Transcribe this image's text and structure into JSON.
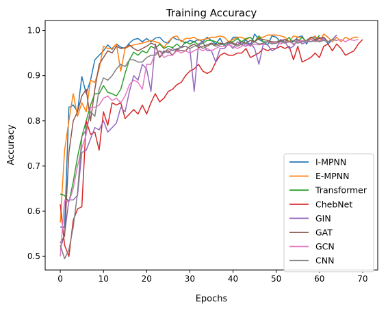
{
  "chart_data": {
    "type": "line",
    "title": "Training Accuracy",
    "xlabel": "Epochs",
    "ylabel": "Accuracy",
    "xlim": [
      -3.5,
      73.5
    ],
    "ylim": [
      0.47,
      1.022
    ],
    "xticks": [
      0,
      10,
      20,
      30,
      40,
      50,
      60,
      70
    ],
    "yticks": [
      0.5,
      0.6,
      0.7,
      0.8,
      0.9,
      1.0
    ],
    "ytick_labels": [
      "0.5",
      "0.6",
      "0.7",
      "0.8",
      "0.9",
      "1.0"
    ],
    "grid": false,
    "legend_position": "lower-right",
    "series": [
      {
        "name": "I-MPNN",
        "color": "#1f77b4",
        "values": [
          0.565,
          0.565,
          0.83,
          0.835,
          0.82,
          0.898,
          0.86,
          0.89,
          0.935,
          0.945,
          0.955,
          0.968,
          0.958,
          0.97,
          0.963,
          0.96,
          0.972,
          0.98,
          0.982,
          0.975,
          0.982,
          0.975,
          0.983,
          0.985,
          0.975,
          0.972,
          0.985,
          0.98,
          0.978,
          0.972,
          0.978,
          0.975,
          0.98,
          0.975,
          0.985,
          0.978,
          0.97,
          0.983,
          0.965,
          0.97,
          0.985,
          0.985,
          0.968,
          0.98,
          0.965,
          0.992,
          0.98,
          0.975,
          0.968,
          0.988,
          0.985,
          0.975,
          0.98,
          0.975,
          0.975,
          0.985,
          0.988,
          0.97,
          0.985,
          0.985,
          0.975,
          0.985,
          0.97,
          0.98,
          0.99
        ]
      },
      {
        "name": "E-MPNN",
        "color": "#ff7f0e",
        "values": [
          0.575,
          0.735,
          0.8,
          0.86,
          0.81,
          0.84,
          0.82,
          0.89,
          0.885,
          0.915,
          0.965,
          0.96,
          0.96,
          0.97,
          0.91,
          0.96,
          0.965,
          0.968,
          0.97,
          0.972,
          0.975,
          0.978,
          0.975,
          0.972,
          0.962,
          0.975,
          0.985,
          0.988,
          0.975,
          0.982,
          0.982,
          0.985,
          0.978,
          0.98,
          0.982,
          0.985,
          0.985,
          0.988,
          0.985,
          0.975,
          0.98,
          0.985,
          0.985,
          0.98,
          0.985,
          0.975,
          0.985,
          0.985,
          0.99,
          0.99,
          0.99,
          0.988,
          0.985,
          0.975,
          0.988,
          0.985,
          0.985,
          0.975,
          0.982,
          0.988,
          0.975,
          0.992,
          0.985,
          0.975,
          0.985,
          0.975,
          0.985,
          0.98,
          0.985,
          0.985
        ]
      },
      {
        "name": "Transformer",
        "color": "#2ca02c",
        "values": [
          0.638,
          0.635,
          0.62,
          0.665,
          0.72,
          0.765,
          0.8,
          0.835,
          0.86,
          0.86,
          0.878,
          0.863,
          0.86,
          0.855,
          0.87,
          0.905,
          0.935,
          0.952,
          0.945,
          0.955,
          0.95,
          0.965,
          0.96,
          0.97,
          0.96,
          0.965,
          0.962,
          0.97,
          0.962,
          0.975,
          0.97,
          0.975,
          0.968,
          0.972,
          0.978,
          0.978,
          0.975,
          0.97,
          0.968,
          0.975,
          0.975,
          0.982,
          0.975,
          0.982,
          0.985,
          0.975,
          0.988,
          0.975,
          0.975,
          0.972,
          0.972,
          0.978,
          0.975,
          0.985,
          0.968,
          0.975,
          0.985,
          0.975,
          0.98,
          0.975,
          0.99
        ]
      },
      {
        "name": "ChebNet",
        "color": "#d62728",
        "values": [
          0.615,
          0.525,
          0.5,
          0.58,
          0.605,
          0.61,
          0.8,
          0.77,
          0.775,
          0.735,
          0.82,
          0.79,
          0.84,
          0.835,
          0.84,
          0.805,
          0.815,
          0.825,
          0.815,
          0.835,
          0.815,
          0.84,
          0.86,
          0.842,
          0.85,
          0.865,
          0.87,
          0.88,
          0.885,
          0.9,
          0.91,
          0.915,
          0.925,
          0.91,
          0.905,
          0.91,
          0.93,
          0.945,
          0.95,
          0.945,
          0.945,
          0.95,
          0.95,
          0.96,
          0.94,
          0.945,
          0.95,
          0.96,
          0.955,
          0.96,
          0.96,
          0.965,
          0.96,
          0.965,
          0.935,
          0.965,
          0.93,
          0.935,
          0.94,
          0.95,
          0.94,
          0.965,
          0.97,
          0.955,
          0.97,
          0.96,
          0.945,
          0.95,
          0.955,
          0.97,
          0.98
        ]
      },
      {
        "name": "GIN",
        "color": "#9467bd",
        "values": [
          0.515,
          0.55,
          0.625,
          0.625,
          0.635,
          0.73,
          0.735,
          0.76,
          0.785,
          0.78,
          0.8,
          0.775,
          0.785,
          0.795,
          0.83,
          0.82,
          0.865,
          0.9,
          0.89,
          0.925,
          0.915,
          0.865,
          0.97,
          0.94,
          0.955,
          0.95,
          0.96,
          0.955,
          0.965,
          0.965,
          0.96,
          0.865,
          0.97,
          0.975,
          0.955,
          0.955,
          0.93,
          0.96,
          0.96,
          0.97,
          0.96,
          0.975,
          0.968,
          0.965,
          0.972,
          0.96,
          0.925,
          0.97,
          0.968,
          0.955,
          0.96,
          0.98,
          0.975,
          0.96,
          0.965,
          0.98,
          0.97,
          0.975,
          0.98,
          0.978,
          0.985,
          0.98,
          0.975,
          0.98,
          0.99
        ]
      },
      {
        "name": "GAT",
        "color": "#8c564b",
        "values": [
          0.53,
          0.545,
          0.73,
          0.8,
          0.82,
          0.855,
          0.87,
          0.8,
          0.87,
          0.925,
          0.94,
          0.955,
          0.95,
          0.965,
          0.96,
          0.962,
          0.968,
          0.96,
          0.955,
          0.96,
          0.965,
          0.972,
          0.968,
          0.94,
          0.952,
          0.955,
          0.945,
          0.958,
          0.955,
          0.955,
          0.965,
          0.97,
          0.962,
          0.965,
          0.968,
          0.972,
          0.968,
          0.972,
          0.97,
          0.975,
          0.972,
          0.968,
          0.975,
          0.972,
          0.978,
          0.975,
          0.982,
          0.98,
          0.978,
          0.975,
          0.975,
          0.978,
          0.98,
          0.975,
          0.978,
          0.98,
          0.975,
          0.978,
          0.985,
          0.98,
          0.982,
          0.985,
          0.975,
          0.98
        ]
      },
      {
        "name": "GCN",
        "color": "#e377c2",
        "values": [
          0.5,
          0.625,
          0.62,
          0.65,
          0.7,
          0.74,
          0.77,
          0.83,
          0.83,
          0.835,
          0.85,
          0.855,
          0.845,
          0.85,
          0.84,
          0.855,
          0.88,
          0.89,
          0.885,
          0.87,
          0.925,
          0.925,
          0.95,
          0.955,
          0.94,
          0.945,
          0.945,
          0.955,
          0.95,
          0.955,
          0.95,
          0.955,
          0.96,
          0.955,
          0.96,
          0.955,
          0.96,
          0.965,
          0.965,
          0.968,
          0.965,
          0.96,
          0.965,
          0.97,
          0.965,
          0.97,
          0.968,
          0.97,
          0.975,
          0.972,
          0.975,
          0.97,
          0.975,
          0.975,
          0.97,
          0.975,
          0.978,
          0.975,
          0.98,
          0.975,
          0.978,
          0.98,
          0.975,
          0.98,
          0.978,
          0.98,
          0.975,
          0.98,
          0.978,
          0.98
        ]
      },
      {
        "name": "CNN",
        "color": "#7f7f7f",
        "values": [
          0.525,
          0.495,
          0.515,
          0.565,
          0.64,
          0.765,
          0.78,
          0.82,
          0.81,
          0.87,
          0.895,
          0.89,
          0.9,
          0.915,
          0.925,
          0.92,
          0.935,
          0.935,
          0.93,
          0.93,
          0.94,
          0.945,
          0.945,
          0.955,
          0.95,
          0.96,
          0.955,
          0.96,
          0.962,
          0.965,
          0.96,
          0.965,
          0.968,
          0.96,
          0.965,
          0.97,
          0.965,
          0.968,
          0.97,
          0.972,
          0.97,
          0.965,
          0.97,
          0.972,
          0.968,
          0.975,
          0.97,
          0.972,
          0.975,
          0.97,
          0.972,
          0.975,
          0.972,
          0.975,
          0.978,
          0.972,
          0.975,
          0.978,
          0.975,
          0.978,
          0.975,
          0.978,
          0.975,
          0.98,
          0.978
        ]
      }
    ]
  }
}
